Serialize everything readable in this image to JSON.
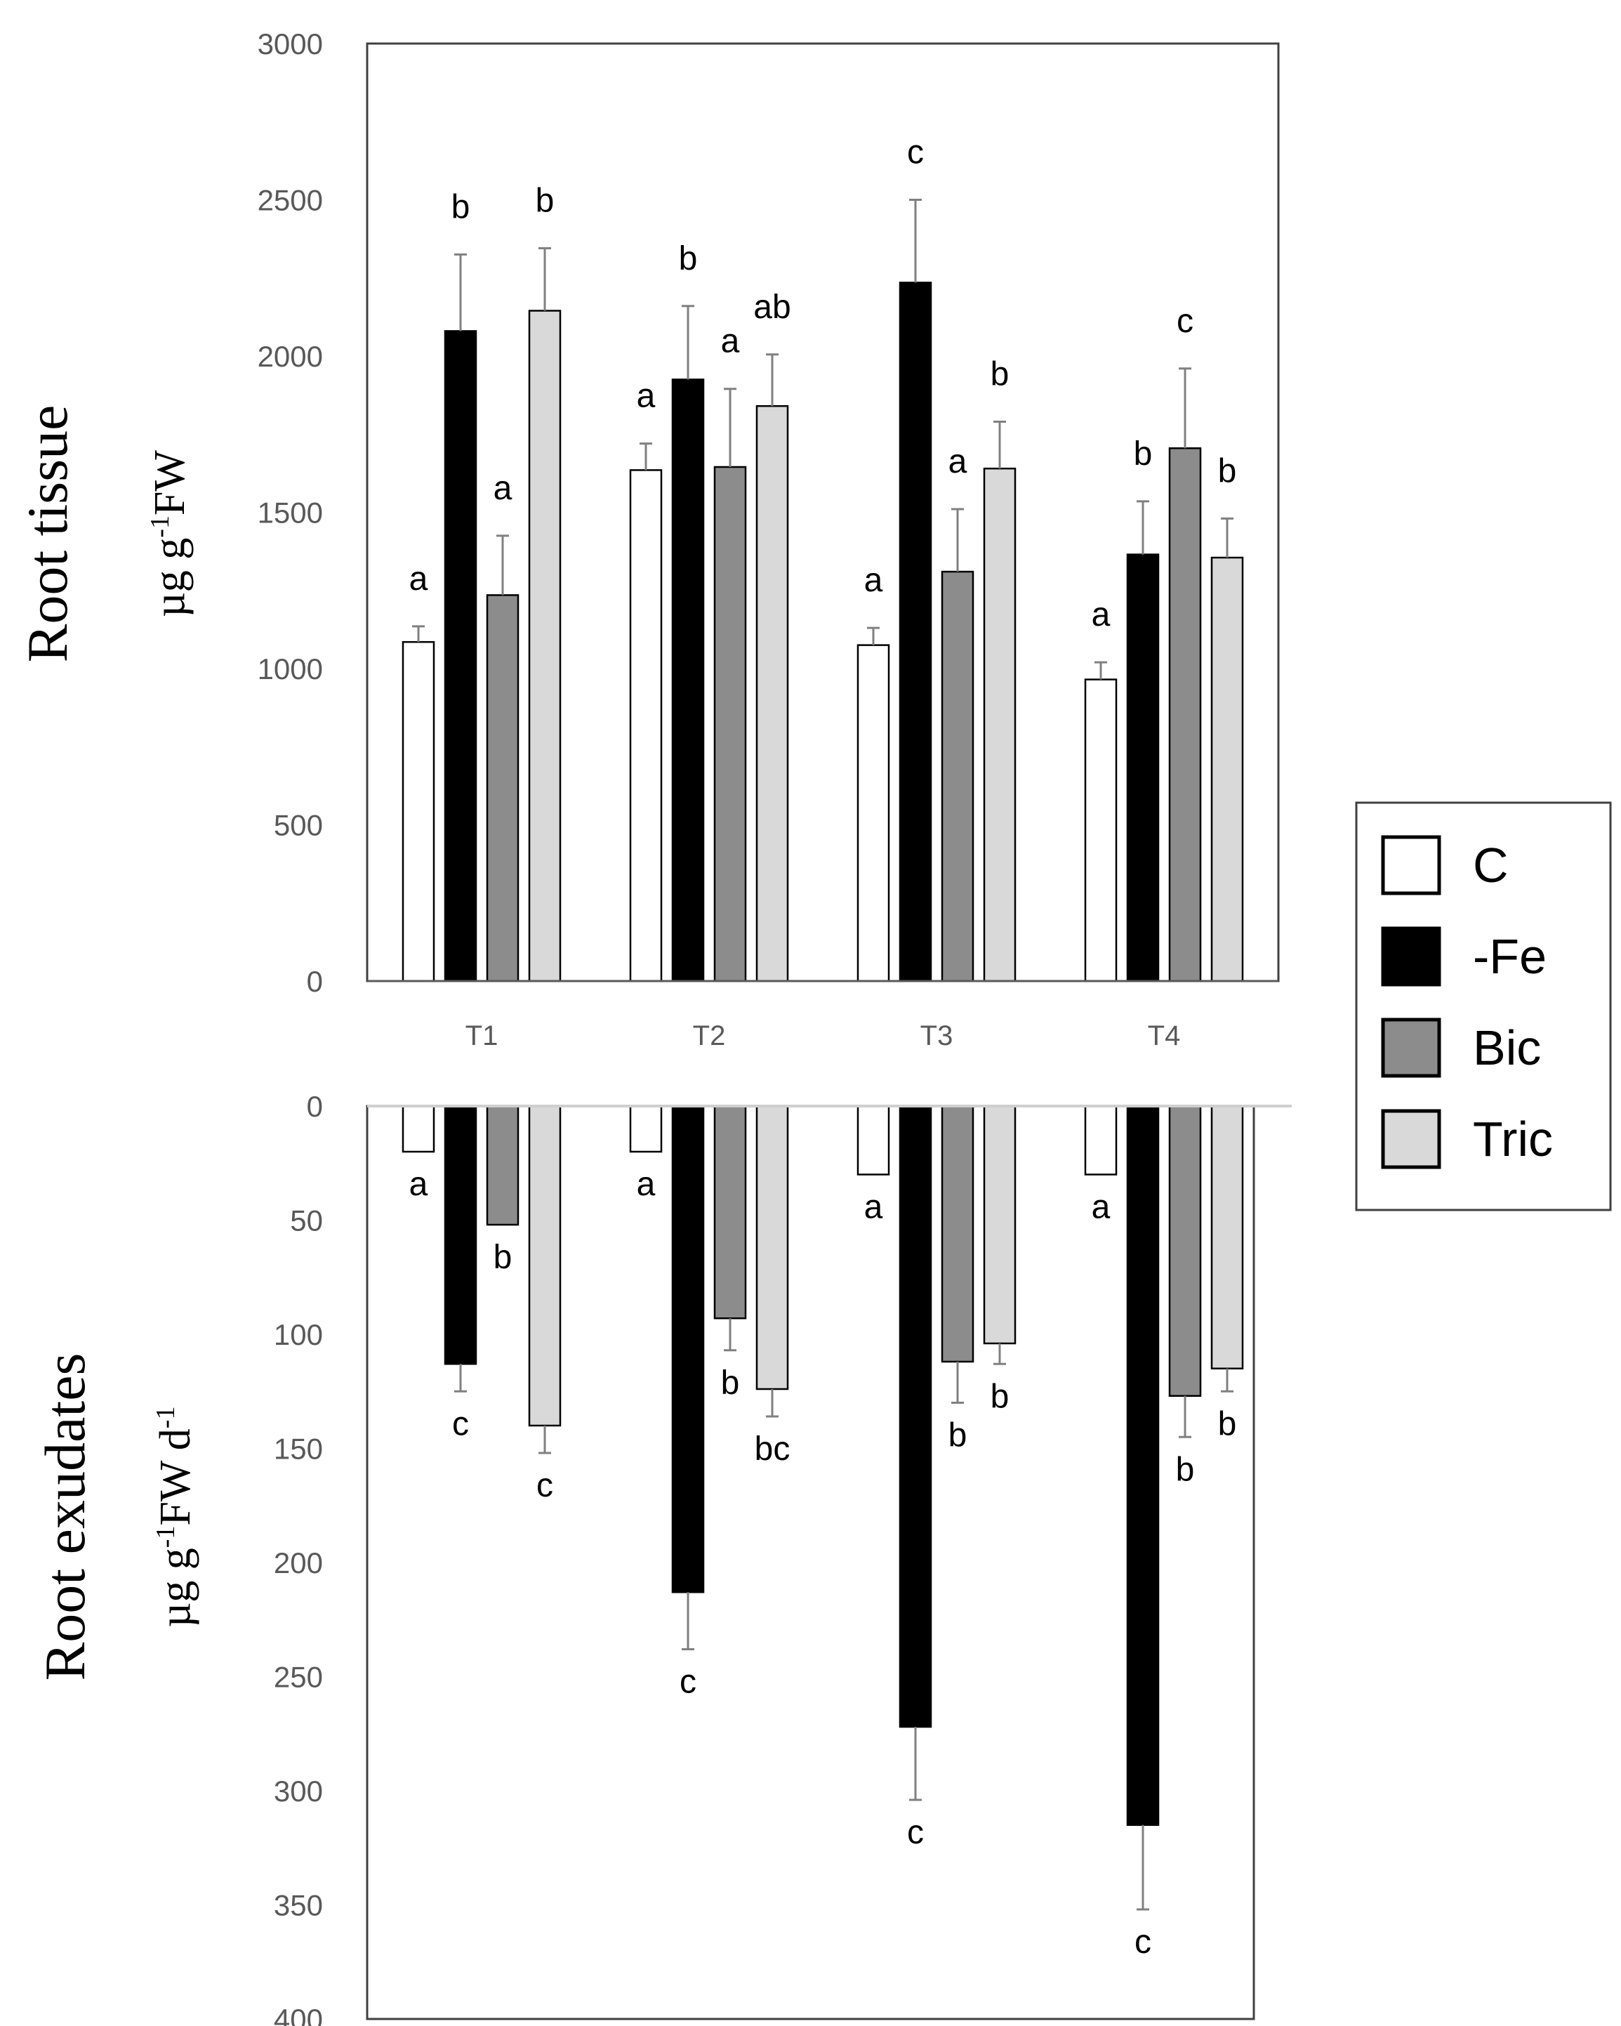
{
  "chart_data": [
    {
      "type": "bar",
      "panel": "top",
      "ylabel": "Root tissue",
      "yunit": "µg g-1FW",
      "ylim": [
        0,
        3000
      ],
      "yticks": [
        "0",
        "500",
        "1000",
        "1500",
        "2000",
        "2500",
        "3000"
      ],
      "categories": [
        "T1",
        "T2",
        "T3",
        "T4"
      ],
      "series": [
        {
          "name": "C",
          "values": [
            1085,
            1635,
            1075,
            965
          ],
          "errors": [
            50,
            85,
            55,
            55
          ],
          "letters": [
            "a",
            "a",
            "a",
            "a"
          ]
        },
        {
          "name": "-Fe",
          "values": [
            2080,
            1925,
            2235,
            1365
          ],
          "errors": [
            245,
            235,
            265,
            170
          ],
          "letters": [
            "b",
            "b",
            "c",
            "b"
          ]
        },
        {
          "name": "Bic",
          "values": [
            1235,
            1645,
            1310,
            1705
          ],
          "errors": [
            190,
            250,
            200,
            255
          ],
          "letters": [
            "a",
            "a",
            "a",
            "c"
          ]
        },
        {
          "name": "Tric",
          "values": [
            2145,
            1840,
            1640,
            1355
          ],
          "errors": [
            200,
            165,
            150,
            125
          ],
          "letters": [
            "b",
            "ab",
            "b",
            "b"
          ]
        }
      ]
    },
    {
      "type": "bar",
      "panel": "bottom",
      "ylabel": "Root exudates",
      "yunit": "µg g-1FW d-1",
      "ylim": [
        0,
        400
      ],
      "inverted": true,
      "yticks": [
        "0",
        "50",
        "100",
        "150",
        "200",
        "250",
        "300",
        "350",
        "400"
      ],
      "categories": [
        "T1",
        "T2",
        "T3",
        "T4"
      ],
      "series": [
        {
          "name": "C",
          "values": [
            20,
            20,
            30,
            30
          ],
          "errors": [
            0,
            0,
            0,
            0
          ],
          "letters": [
            "a",
            "a",
            "a",
            "a"
          ]
        },
        {
          "name": "-Fe",
          "values": [
            113,
            213,
            272,
            315
          ],
          "errors": [
            12,
            25,
            32,
            37
          ],
          "letters": [
            "c",
            "c",
            "c",
            "c"
          ]
        },
        {
          "name": "Bic",
          "values": [
            52,
            93,
            112,
            127
          ],
          "errors": [
            0,
            14,
            18,
            18
          ],
          "letters": [
            "b",
            "b",
            "b",
            "b"
          ]
        },
        {
          "name": "Tric",
          "values": [
            140,
            124,
            104,
            115
          ],
          "errors": [
            12,
            12,
            9,
            10
          ],
          "letters": [
            "c",
            "bc",
            "b",
            "b"
          ]
        }
      ]
    }
  ],
  "legend": {
    "items": [
      {
        "label": "C",
        "color": "#ffffff"
      },
      {
        "label": "-Fe",
        "color": "#000000"
      },
      {
        "label": "Bic",
        "color": "#8c8c8c"
      },
      {
        "label": "Tric",
        "color": "#d9d9d9"
      }
    ]
  },
  "colors": {
    "axis": "#595959",
    "border": "#404040",
    "error": "#808080"
  }
}
